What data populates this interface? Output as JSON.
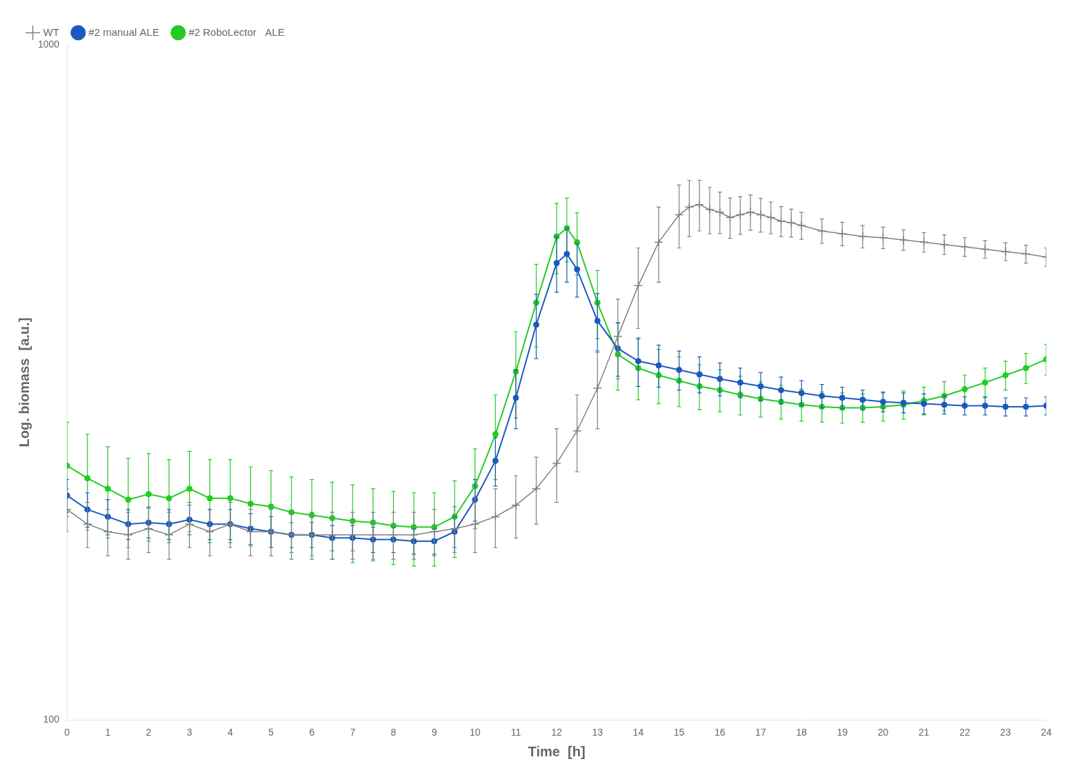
{
  "chart_data": {
    "type": "line",
    "xlabel": "Time  [h]",
    "ylabel": "Log. biomass  [a.u.]",
    "log": "y",
    "grid": false,
    "legend": "upper left",
    "xlim": [
      0,
      24
    ],
    "ylim": [
      100,
      1000
    ],
    "xticks": [
      0,
      1,
      2,
      3,
      4,
      5,
      6,
      7,
      8,
      9,
      10,
      11,
      12,
      13,
      14,
      15,
      16,
      17,
      18,
      19,
      20,
      21,
      22,
      23,
      24
    ],
    "yticks": [
      100,
      1000
    ],
    "series": [
      {
        "name": "WT",
        "color": "#808080",
        "marker": "plus",
        "line_style": "solid",
        "x": [
          0,
          0.5,
          1,
          1.5,
          2,
          2.5,
          3,
          3.5,
          4,
          4.5,
          5,
          5.5,
          6,
          6.5,
          7,
          7.5,
          8,
          8.5,
          9,
          9.5,
          10,
          10.5,
          11,
          11.5,
          12,
          12.5,
          13,
          13.5,
          14,
          14.5,
          15,
          15.25,
          15.5,
          15.75,
          16,
          16.25,
          16.5,
          16.75,
          17,
          17.25,
          17.5,
          17.75,
          18,
          18.5,
          19,
          19.5,
          20,
          20.5,
          21,
          21.5,
          22,
          22.5,
          23,
          23.5,
          24
        ],
        "values": [
          205,
          195,
          190,
          188,
          192,
          188,
          195,
          190,
          195,
          190,
          190,
          188,
          188,
          188,
          188,
          188,
          188,
          188,
          190,
          192,
          195,
          200,
          208,
          220,
          240,
          268,
          310,
          370,
          440,
          510,
          560,
          575,
          580,
          570,
          565,
          555,
          560,
          565,
          560,
          555,
          548,
          545,
          540,
          530,
          525,
          520,
          518,
          514,
          510,
          506,
          502,
          498,
          494,
          490,
          485
        ],
        "yerr": [
          15,
          15,
          15,
          15,
          15,
          15,
          15,
          15,
          15,
          15,
          15,
          15,
          15,
          15,
          15,
          15,
          15,
          15,
          15,
          15,
          18,
          20,
          22,
          25,
          30,
          35,
          40,
          50,
          60,
          65,
          60,
          55,
          50,
          45,
          40,
          38,
          36,
          34,
          32,
          30,
          28,
          26,
          25,
          22,
          21,
          20,
          19,
          18,
          17,
          17,
          16,
          15,
          15,
          15,
          15
        ]
      },
      {
        "name": "#2 manual ALE",
        "color": "#1a5abf",
        "marker": "circle",
        "line_style": "solid",
        "x": [
          0,
          0.5,
          1,
          1.5,
          2,
          2.5,
          3,
          3.5,
          4,
          4.5,
          5,
          5.5,
          6,
          6.5,
          7,
          7.5,
          8,
          8.5,
          9,
          9.5,
          10,
          10.5,
          11,
          11.5,
          12,
          12.25,
          12.5,
          13,
          13.5,
          14,
          14.5,
          15,
          15.5,
          16,
          16.5,
          17,
          17.5,
          18,
          18.5,
          19,
          19.5,
          20,
          20.5,
          21,
          21.5,
          22,
          22.5,
          23,
          23.5,
          24
        ],
        "values": [
          215,
          205,
          200,
          195,
          196,
          195,
          198,
          195,
          195,
          192,
          190,
          188,
          188,
          186,
          186,
          185,
          185,
          184,
          184,
          190,
          212,
          242,
          300,
          385,
          475,
          490,
          465,
          390,
          355,
          340,
          335,
          330,
          325,
          320,
          316,
          312,
          308,
          305,
          302,
          300,
          298,
          296,
          295,
          294,
          293,
          292,
          292,
          291,
          291,
          292
        ],
        "yerr": [
          12,
          12,
          12,
          10,
          10,
          10,
          10,
          10,
          10,
          10,
          10,
          8,
          8,
          8,
          8,
          8,
          8,
          8,
          8,
          10,
          15,
          20,
          30,
          42,
          45,
          45,
          42,
          38,
          32,
          28,
          24,
          22,
          20,
          18,
          16,
          15,
          14,
          13,
          12,
          11,
          10,
          10,
          10,
          10,
          9,
          9,
          9,
          9,
          9,
          9
        ]
      },
      {
        "name": "#2 RoboLector   ALE",
        "color": "#22cc22",
        "marker": "circle",
        "line_style": "solid",
        "x": [
          0,
          0.5,
          1,
          1.5,
          2,
          2.5,
          3,
          3.5,
          4,
          4.5,
          5,
          5.5,
          6,
          6.5,
          7,
          7.5,
          8,
          8.5,
          9,
          9.5,
          10,
          10.5,
          11,
          11.5,
          12,
          12.25,
          12.5,
          13,
          13.5,
          14,
          14.5,
          15,
          15.5,
          16,
          16.5,
          17,
          17.5,
          18,
          18.5,
          19,
          19.5,
          20,
          20.5,
          21,
          21.5,
          22,
          22.5,
          23,
          23.5,
          24
        ],
        "values": [
          238,
          228,
          220,
          212,
          216,
          213,
          220,
          213,
          213,
          209,
          207,
          203,
          201,
          199,
          197,
          196,
          194,
          193,
          193,
          200,
          222,
          265,
          328,
          415,
          520,
          535,
          510,
          415,
          348,
          332,
          324,
          318,
          312,
          308,
          303,
          299,
          296,
          293,
          291,
          290,
          290,
          291,
          293,
          297,
          302,
          309,
          316,
          324,
          332,
          342
        ],
        "yerr": [
          38,
          37,
          34,
          32,
          32,
          30,
          30,
          30,
          30,
          28,
          27,
          26,
          26,
          26,
          26,
          24,
          24,
          24,
          24,
          26,
          30,
          38,
          48,
          58,
          62,
          58,
          54,
          48,
          40,
          34,
          30,
          27,
          24,
          22,
          20,
          18,
          17,
          16,
          15,
          15,
          14,
          14,
          14,
          14,
          15,
          15,
          16,
          16,
          17,
          18
        ]
      }
    ]
  }
}
